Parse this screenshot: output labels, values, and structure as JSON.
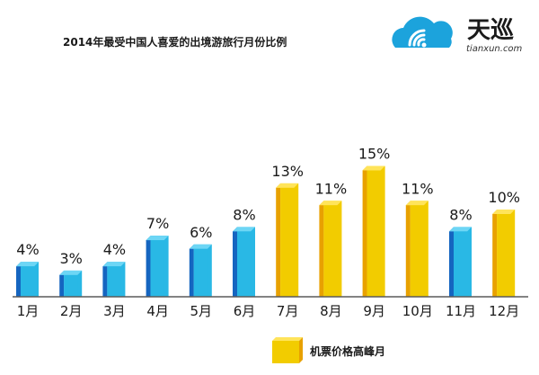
{
  "chart_data": {
    "type": "bar",
    "title": "2014年最受中国人喜爱的出境游旅行月份比例",
    "categories": [
      "1月",
      "2月",
      "3月",
      "4月",
      "5月",
      "6月",
      "7月",
      "8月",
      "9月",
      "10月",
      "11月",
      "12月"
    ],
    "values": [
      4,
      3,
      4,
      7,
      6,
      8,
      13,
      11,
      15,
      11,
      8,
      10
    ],
    "value_labels": [
      "4%",
      "3%",
      "4%",
      "7%",
      "6%",
      "8%",
      "13%",
      "11%",
      "15%",
      "11%",
      "8%",
      "10%"
    ],
    "highlight": [
      false,
      false,
      false,
      false,
      false,
      false,
      true,
      true,
      true,
      true,
      false,
      true
    ],
    "ylim": [
      0,
      15
    ],
    "xlabel": "",
    "ylabel": "",
    "legend": {
      "label": "机票价格高峰月",
      "position": "bottom-right"
    },
    "grid": false
  },
  "colors": {
    "blue_face": "#29B8E5",
    "blue_side": "#1565C0",
    "blue_top": "#6DD6F5",
    "gold_face": "#F2CC00",
    "gold_side": "#E8A100",
    "gold_top": "#FFE45A",
    "baseline": "#5a5a5a",
    "logo_blue": "#1CA3DC"
  },
  "logo": {
    "name": "天巡",
    "domain": "tianxun.com"
  }
}
